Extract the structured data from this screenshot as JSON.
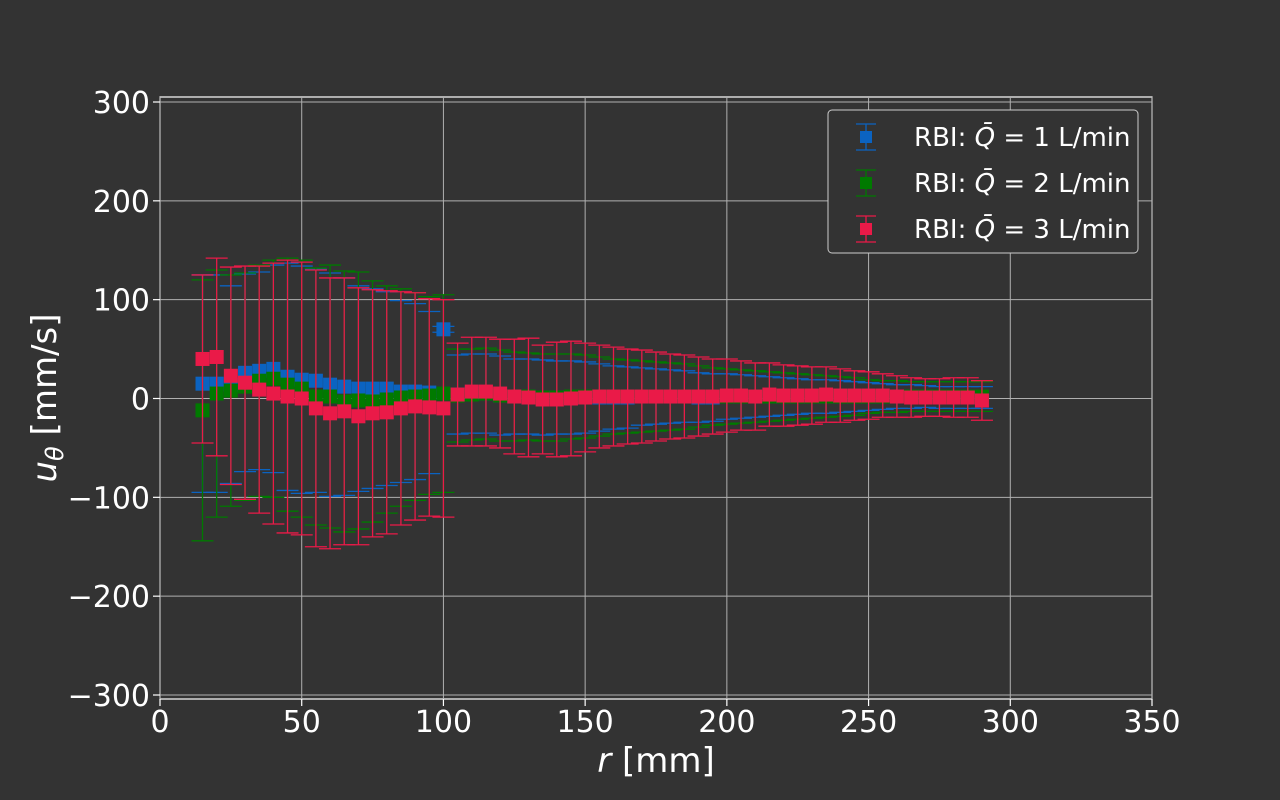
{
  "chart_data": {
    "type": "scatter",
    "title": "",
    "xlabel_var": "r",
    "xlabel_unit": " [mm]",
    "ylabel_var": "u",
    "ylabel_sub": "θ",
    "ylabel_unit": " [mm/s]",
    "xlim": [
      0,
      350
    ],
    "ylim": [
      -300,
      300
    ],
    "xticks": [
      0,
      50,
      100,
      150,
      200,
      250,
      300,
      350
    ],
    "yticks": [
      -300,
      -200,
      -100,
      0,
      100,
      200,
      300
    ],
    "xtick_labels": [
      "0",
      "50",
      "100",
      "150",
      "200",
      "250",
      "300",
      "350"
    ],
    "ytick_labels": [
      "−300",
      "−200",
      "−100",
      "0",
      "100",
      "200",
      "300"
    ],
    "grid": true,
    "legend_position": "top-right",
    "legend_prefix": "RBI: ",
    "legend_symbol": "Q̄",
    "legend_eq": " = ",
    "series": [
      {
        "name": "RBI: Q̄ = 1 L/min",
        "q_value": "1",
        "q_unit": " L/min",
        "color": "#0b63c1",
        "x": [
          15,
          20,
          25,
          30,
          35,
          40,
          45,
          50,
          55,
          60,
          65,
          70,
          75,
          80,
          85,
          90,
          95,
          100,
          105,
          110,
          115,
          120,
          125,
          130,
          135,
          140,
          145,
          150,
          155,
          160,
          165,
          170,
          175,
          180,
          185,
          190,
          195,
          200,
          205,
          210,
          215,
          220,
          225,
          230,
          235,
          240,
          245,
          250,
          255,
          260,
          265,
          270,
          275,
          280,
          285,
          290
        ],
        "y": [
          15,
          15,
          14,
          26,
          28,
          30,
          22,
          19,
          18,
          14,
          12,
          10,
          10,
          10,
          7,
          7,
          6,
          70,
          4,
          5,
          5,
          3,
          2,
          2,
          1,
          1,
          1,
          1,
          1,
          1,
          1,
          2,
          2,
          2,
          2,
          1,
          1,
          2,
          2,
          2,
          2,
          2,
          2,
          2,
          2,
          2,
          2,
          2,
          2,
          2,
          2,
          2,
          1,
          1,
          1,
          1
        ],
        "err": [
          110,
          110,
          100,
          100,
          100,
          105,
          115,
          115,
          113,
          113,
          110,
          104,
          101,
          98,
          92,
          89,
          82,
          3,
          40,
          40,
          40,
          40,
          38,
          38,
          38,
          37,
          37,
          36,
          34,
          32,
          31,
          29,
          28,
          27,
          26,
          25,
          24,
          23,
          22,
          21,
          20,
          19,
          18,
          17,
          17,
          16,
          15,
          14,
          13,
          12,
          12,
          11,
          11,
          11,
          11,
          11
        ]
      },
      {
        "name": "RBI: Q̄ = 2 L/min",
        "q_value": "2",
        "q_unit": " L/min",
        "color": "#007a00",
        "x": [
          15,
          20,
          25,
          30,
          35,
          40,
          45,
          50,
          55,
          60,
          65,
          70,
          75,
          80,
          85,
          90,
          95,
          100,
          105,
          110,
          115,
          120,
          125,
          130,
          135,
          140,
          145,
          150,
          155,
          160,
          165,
          170,
          175,
          180,
          185,
          190,
          195,
          200,
          205,
          210,
          215,
          220,
          225,
          230,
          235,
          240,
          245,
          250,
          255,
          260,
          265,
          270,
          275,
          280,
          285,
          290
        ],
        "y": [
          -12,
          5,
          8,
          12,
          18,
          20,
          14,
          10,
          2,
          2,
          -3,
          -2,
          -3,
          -1,
          1,
          2,
          3,
          5,
          3,
          4,
          5,
          3,
          2,
          2,
          1,
          1,
          2,
          2,
          2,
          2,
          2,
          2,
          2,
          2,
          2,
          2,
          2,
          2,
          2,
          2,
          2,
          2,
          2,
          2,
          2,
          2,
          2,
          2,
          2,
          2,
          2,
          2,
          2,
          2,
          2,
          2
        ],
        "err": [
          132,
          125,
          117,
          115,
          117,
          120,
          128,
          130,
          130,
          133,
          132,
          130,
          122,
          115,
          110,
          105,
          100,
          100,
          47,
          46,
          46,
          46,
          45,
          44,
          44,
          44,
          43,
          42,
          40,
          38,
          37,
          36,
          35,
          34,
          33,
          31,
          29,
          28,
          27,
          26,
          25,
          24,
          23,
          22,
          21,
          20,
          19,
          17,
          16,
          16,
          15,
          15,
          15,
          15,
          15,
          15
        ]
      },
      {
        "name": "RBI: Q̄ = 3 L/min",
        "q_value": "3",
        "q_unit": " L/min",
        "color": "#ea1a48",
        "x": [
          15,
          20,
          25,
          30,
          35,
          40,
          45,
          50,
          55,
          60,
          65,
          70,
          75,
          80,
          85,
          90,
          95,
          100,
          105,
          110,
          115,
          120,
          125,
          130,
          135,
          140,
          145,
          150,
          155,
          160,
          165,
          170,
          175,
          180,
          185,
          190,
          195,
          200,
          205,
          210,
          215,
          220,
          225,
          230,
          235,
          240,
          245,
          250,
          255,
          260,
          265,
          270,
          275,
          280,
          285,
          290
        ],
        "y": [
          40,
          42,
          23,
          16,
          9,
          5,
          2,
          0,
          -10,
          -15,
          -13,
          -18,
          -15,
          -14,
          -10,
          -8,
          -9,
          -10,
          4,
          7,
          7,
          5,
          2,
          1,
          -1,
          -1,
          0,
          1,
          2,
          2,
          2,
          2,
          2,
          2,
          2,
          2,
          2,
          3,
          3,
          2,
          4,
          3,
          3,
          3,
          4,
          3,
          3,
          3,
          3,
          2,
          1,
          1,
          1,
          1,
          1,
          -2
        ],
        "err": [
          85,
          100,
          110,
          118,
          125,
          132,
          138,
          138,
          140,
          137,
          135,
          130,
          125,
          123,
          118,
          115,
          110,
          110,
          52,
          55,
          55,
          55,
          58,
          60,
          55,
          58,
          58,
          55,
          52,
          50,
          48,
          47,
          45,
          43,
          42,
          40,
          38,
          37,
          35,
          34,
          32,
          31,
          30,
          29,
          28,
          27,
          25,
          24,
          22,
          21,
          20,
          19,
          19,
          20,
          20,
          20
        ]
      }
    ]
  }
}
